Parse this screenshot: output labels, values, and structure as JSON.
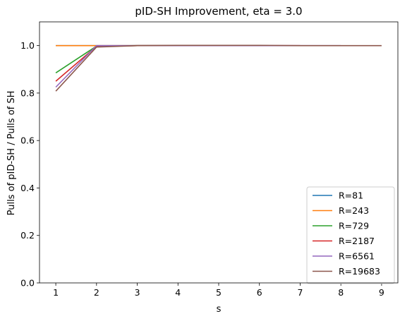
{
  "chart_data": {
    "type": "line",
    "title": "pID-SH Improvement, eta = 3.0",
    "xlabel": "s",
    "ylabel": "Pulls of pID-SH / Pulls of SH",
    "xlim": [
      0.6,
      9.4
    ],
    "ylim": [
      0.0,
      1.1
    ],
    "xticks": [
      1,
      2,
      3,
      4,
      5,
      6,
      7,
      8,
      9
    ],
    "yticks": [
      0.0,
      0.2,
      0.4,
      0.6,
      0.8,
      1.0
    ],
    "ytick_labels": [
      "0.0",
      "0.2",
      "0.4",
      "0.6",
      "0.8",
      "1.0"
    ],
    "legend_position": "lower right",
    "series": [
      {
        "name": "R=81",
        "color": "#1f77b4",
        "x": [
          1,
          2,
          3,
          4
        ],
        "y": [
          1.0,
          1.0,
          1.0,
          1.0
        ]
      },
      {
        "name": "R=243",
        "color": "#ff7f0e",
        "x": [
          1,
          2,
          3,
          4,
          5
        ],
        "y": [
          1.0,
          1.0,
          1.0,
          1.0,
          1.0
        ]
      },
      {
        "name": "R=729",
        "color": "#2ca02c",
        "x": [
          1,
          2,
          3,
          4,
          5,
          6
        ],
        "y": [
          0.885,
          0.998,
          1.0,
          1.0,
          1.0,
          1.0
        ]
      },
      {
        "name": "R=2187",
        "color": "#d62728",
        "x": [
          1,
          2,
          3,
          4,
          5,
          6,
          7
        ],
        "y": [
          0.85,
          0.997,
          1.0,
          1.0,
          1.0,
          1.0,
          1.0
        ]
      },
      {
        "name": "R=6561",
        "color": "#9467bd",
        "x": [
          1,
          2,
          3,
          4,
          5,
          6,
          7,
          8
        ],
        "y": [
          0.825,
          1.0,
          1.0,
          1.0,
          1.0,
          1.0,
          1.0,
          1.0
        ]
      },
      {
        "name": "R=19683",
        "color": "#8c564b",
        "x": [
          1,
          2,
          3,
          4,
          5,
          6,
          7,
          8,
          9
        ],
        "y": [
          0.808,
          0.994,
          1.0,
          1.001,
          1.001,
          1.001,
          1.0,
          1.0,
          1.0
        ]
      }
    ]
  }
}
